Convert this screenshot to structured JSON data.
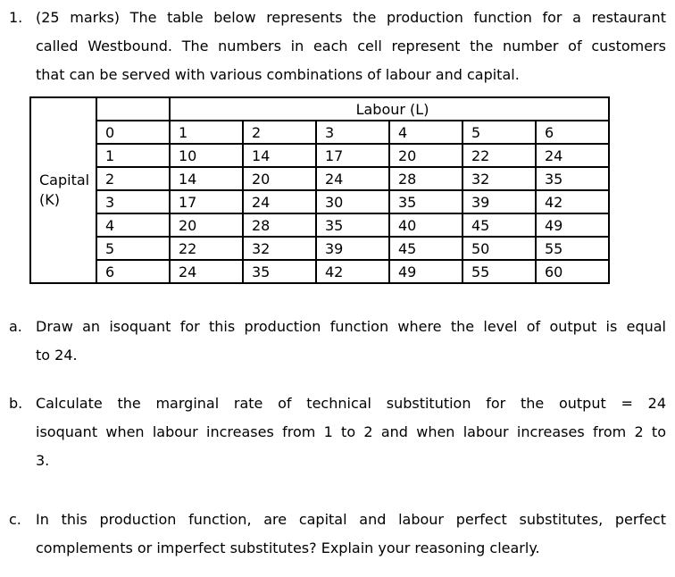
{
  "colors": {
    "text": "#000000",
    "background": "#ffffff",
    "table_border": "#000000"
  },
  "question": {
    "number": "1.",
    "lines": [
      "(25 marks) The table below represents the production function for a restaurant",
      "called Westbound. The numbers in each cell represent the number of customers",
      "that can be served with various combinations of labour and capital."
    ]
  },
  "table": {
    "capital_label": "Capital (K)",
    "labour_label": "Labour (L)",
    "rows": [
      [
        "0",
        "1",
        "2",
        "3",
        "4",
        "5",
        "6"
      ],
      [
        "1",
        "10",
        "14",
        "17",
        "20",
        "22",
        "24"
      ],
      [
        "2",
        "14",
        "20",
        "24",
        "28",
        "32",
        "35"
      ],
      [
        "3",
        "17",
        "24",
        "30",
        "35",
        "39",
        "42"
      ],
      [
        "4",
        "20",
        "28",
        "35",
        "40",
        "45",
        "49"
      ],
      [
        "5",
        "22",
        "32",
        "39",
        "45",
        "50",
        "55"
      ],
      [
        "6",
        "24",
        "35",
        "42",
        "49",
        "55",
        "60"
      ]
    ]
  },
  "parts": [
    {
      "label": "a.",
      "lines": [
        "Draw an isoquant for this production function where the level of output is equal",
        "to 24."
      ]
    },
    {
      "label": "b.",
      "lines": [
        "Calculate the marginal rate of technical substitution for the output = 24",
        "isoquant when labour increases from 1 to 2 and when labour increases from 2 to",
        "3."
      ]
    },
    {
      "label": "c.",
      "lines": [
        "In this production function, are capital and labour perfect substitutes, perfect",
        "complements or imperfect substitutes? Explain your reasoning clearly."
      ]
    }
  ]
}
